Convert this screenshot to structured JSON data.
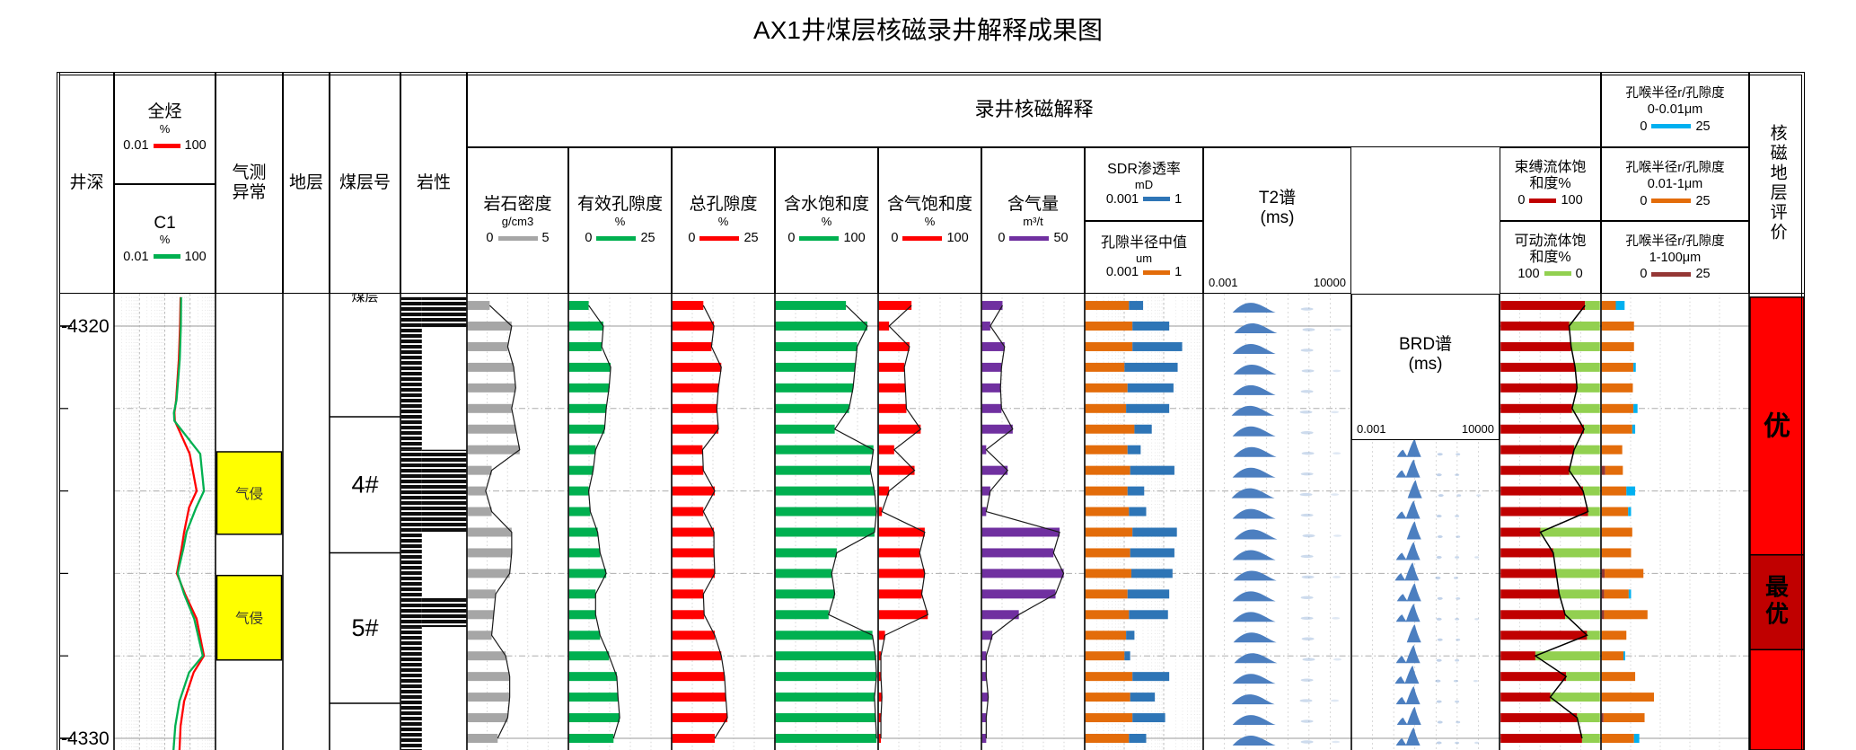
{
  "title": "AX1井煤层核磁录井解释成果图",
  "colors": {
    "red": "#FF0000",
    "green": "#00B050",
    "gray": "#A6A6A6",
    "purple": "#7030A0",
    "blue": "#2E75B6",
    "orange": "#E36C0A",
    "cyan": "#00B0F0",
    "darkred": "#C00000",
    "lightgreen": "#92D050",
    "brown": "#953735",
    "spectra": "#4C7FC0",
    "yellow": "#FFFF00",
    "grid": "#ADADAD",
    "grid_light": "#CCCCCC"
  },
  "header": {
    "band": "录井核磁解释",
    "depth": "井深",
    "gas_total": {
      "label": "全烃",
      "unit": "%",
      "min": "0.01",
      "max": "100"
    },
    "gas_c1": {
      "label": "C1",
      "unit": "%",
      "min": "0.01",
      "max": "100"
    },
    "anomaly": "气测\n异常",
    "strata": "地层",
    "seam": "煤层号",
    "lith": "岩性",
    "tracks": {
      "density": {
        "label": "岩石密度",
        "unit": "g/cm3",
        "min": "0",
        "max": "5"
      },
      "eff_por": {
        "label": "有效孔隙度",
        "unit": "%",
        "min": "0",
        "max": "25"
      },
      "tot_por": {
        "label": "总孔隙度",
        "unit": "%",
        "min": "0",
        "max": "25"
      },
      "sw": {
        "label": "含水饱和度",
        "unit": "%",
        "min": "0",
        "max": "100"
      },
      "sg": {
        "label": "含气饱和度",
        "unit": "%",
        "min": "0",
        "max": "100"
      },
      "gas_content": {
        "label": "含气量",
        "unit": "m³/t",
        "min": "0",
        "max": "50"
      },
      "sdr": {
        "label": "SDR渗透率",
        "unit": "mD",
        "min": "0.001",
        "max": "1"
      },
      "pore_radius": {
        "label": "孔隙半径中值",
        "unit": "um",
        "min": "0.001",
        "max": "1"
      },
      "t2": {
        "label": "T2谱\n(ms)",
        "min": "0.001",
        "max": "10000"
      },
      "brd": {
        "label": "BRD谱\n(ms)",
        "min": "0.001",
        "max": "10000"
      },
      "bound": {
        "label": "束缚流体饱\n和度%",
        "min": "0",
        "max": "100"
      },
      "movable": {
        "label": "可动流体饱\n和度%",
        "min": "100",
        "max": "0"
      },
      "pt1": {
        "label": "孔喉半径r/孔隙度\n0-0.01μm",
        "min": "0",
        "max": "25"
      },
      "pt2": {
        "label": "孔喉半径r/孔隙度\n0.01-1μm",
        "min": "0",
        "max": "25"
      },
      "pt3": {
        "label": "孔喉半径r/孔隙度\n1-100μm",
        "min": "0",
        "max": "25"
      },
      "eval": "核磁地层评价"
    }
  },
  "chart_data": {
    "type": "well-log",
    "title": "AX1井煤层核磁录井解释成果图",
    "depth_axis": {
      "label": "井深",
      "top": 4319.2,
      "bottom": 4330.3,
      "major_ticks": [
        4320,
        4330
      ],
      "major_labels": [
        "-4320",
        "-4330"
      ],
      "minor_ticks": [
        4322,
        4324,
        4326,
        4328
      ]
    },
    "gas_curves": {
      "scale": "log",
      "min": 0.01,
      "max": 100,
      "total_hc": [
        [
          4319.3,
          4.2
        ],
        [
          4320,
          4.0
        ],
        [
          4320.8,
          3.6
        ],
        [
          4321.8,
          2.8
        ],
        [
          4322.1,
          2.4
        ],
        [
          4322.3,
          2.5
        ],
        [
          4323.1,
          9.6
        ],
        [
          4324,
          18
        ],
        [
          4324.4,
          9.1
        ],
        [
          4325,
          5.8
        ],
        [
          4325.4,
          4.6
        ],
        [
          4326,
          3.0
        ],
        [
          4326.5,
          6.3
        ],
        [
          4327.1,
          18
        ],
        [
          4328,
          35
        ],
        [
          4328.4,
          13.8
        ],
        [
          4329.1,
          5.8
        ],
        [
          4329.7,
          4.2
        ],
        [
          4330.3,
          3.8
        ]
      ],
      "c1": [
        [
          4319.3,
          4.4
        ],
        [
          4320,
          4.3
        ],
        [
          4320.8,
          3.9
        ],
        [
          4321.8,
          2.9
        ],
        [
          4322.1,
          2.3
        ],
        [
          4322.3,
          2.4
        ],
        [
          4323.1,
          25
        ],
        [
          4324,
          35
        ],
        [
          4324.4,
          17.4
        ],
        [
          4325,
          7.2
        ],
        [
          4325.4,
          5.4
        ],
        [
          4326,
          3.2
        ],
        [
          4326.5,
          5.8
        ],
        [
          4327.1,
          14.5
        ],
        [
          4328,
          31.6
        ],
        [
          4328.4,
          9.1
        ],
        [
          4329.1,
          3.8
        ],
        [
          4329.7,
          2.6
        ],
        [
          4330.3,
          2.2
        ]
      ]
    },
    "sample_depths": [
      4319.5,
      4320,
      4320.5,
      4321,
      4321.5,
      4322,
      4322.5,
      4323,
      4323.5,
      4324,
      4324.5,
      4325,
      4325.5,
      4326,
      4326.5,
      4327,
      4327.5,
      4328,
      4328.5,
      4329,
      4329.5,
      4330
    ],
    "density_g_cm3": [
      1.1,
      2.2,
      2.0,
      2.3,
      2.4,
      2.2,
      2.4,
      2.6,
      1.2,
      0.9,
      1.2,
      2.2,
      2.2,
      2.1,
      1.4,
      1.3,
      1.2,
      1.9,
      2.1,
      2.1,
      2.0,
      1.5
    ],
    "eff_porosity_pct": [
      4.8,
      8.4,
      8.0,
      10.2,
      9.8,
      9.1,
      8.7,
      6.5,
      5.9,
      4.8,
      5.2,
      7.0,
      7.6,
      9.1,
      6.5,
      6.5,
      7.6,
      9.8,
      11.7,
      12.0,
      12.4,
      10.9
    ],
    "tot_porosity_pct": [
      7.6,
      10.2,
      9.6,
      12.0,
      11.3,
      10.9,
      11.3,
      7.4,
      7.6,
      10.4,
      7.6,
      10.2,
      10.2,
      10.4,
      7.6,
      7.8,
      10.4,
      12.0,
      12.8,
      13.1,
      13.5,
      10.4
    ],
    "water_sat_pct": [
      69,
      90,
      80,
      78,
      76,
      72,
      58,
      96,
      93,
      97,
      99,
      97,
      60,
      55,
      58,
      52,
      95,
      98,
      99,
      97,
      98,
      99
    ],
    "gas_sat_pct": [
      32,
      10,
      30,
      25,
      26,
      27,
      41,
      15,
      35,
      10,
      3,
      45,
      40,
      45,
      42,
      48,
      6,
      2,
      2,
      3,
      2,
      2
    ],
    "gas_content_m3t": [
      10,
      4,
      11,
      9.5,
      9,
      9.5,
      15,
      2,
      12.5,
      4,
      2,
      38,
      35,
      40,
      36,
      18,
      5,
      2,
      2,
      3,
      2,
      2
    ],
    "sdr_perm_mD": [
      0.03,
      0.14,
      0.3,
      0.23,
      0.18,
      0.14,
      0.05,
      0.026,
      0.19,
      0.032,
      0.036,
      0.22,
      0.19,
      0.17,
      0.14,
      0.13,
      0.018,
      0.014,
      0.14,
      0.06,
      0.11,
      0.036
    ],
    "pore_radius_um": [
      0.013,
      0.016,
      0.016,
      0.01,
      0.012,
      0.011,
      0.018,
      0.012,
      0.014,
      0.012,
      0.013,
      0.016,
      0.014,
      0.015,
      0.012,
      0.013,
      0.011,
      0.01,
      0.016,
      0.014,
      0.016,
      0.013
    ],
    "bound_fluid_pct": [
      85,
      69,
      71,
      75,
      77,
      72,
      84,
      74,
      69,
      83,
      88,
      40,
      53,
      56,
      59,
      65,
      87,
      35,
      66,
      50,
      77,
      82
    ],
    "pt_orange_001_1um": [
      2.4,
      5.5,
      5.5,
      5.4,
      5.3,
      5.4,
      5.2,
      3.5,
      3.0,
      4.2,
      4.5,
      5.2,
      5.0,
      6.6,
      4.2,
      7.4,
      4.2,
      3.7,
      5.7,
      8.9,
      7.0,
      5.5
    ],
    "pt_cyan_0_001um": [
      1.5,
      0,
      0,
      0.4,
      0,
      0.7,
      0.5,
      0,
      0,
      1.5,
      0.5,
      0,
      0,
      0,
      0.4,
      0,
      0,
      0.3,
      0,
      0,
      0,
      0.9
    ],
    "pt_brown_1_100um": [
      0,
      0,
      0,
      0,
      0,
      0,
      0,
      0,
      0.6,
      0,
      0,
      0,
      0,
      0.5,
      0.4,
      0.4,
      0,
      0,
      0,
      0,
      0.3,
      0
    ],
    "t2_peak_ms": [
      0.5,
      0.6,
      0.5,
      0.55,
      0.5,
      0.45,
      0.5,
      0.55,
      0.5,
      0.45,
      0.5,
      0.6,
      0.5,
      0.55,
      0.5,
      0.5,
      0.55,
      0.6,
      0.5,
      0.45,
      0.5,
      0.5
    ],
    "brd_peak_ms": [
      0.9,
      1.0,
      1.1,
      0.9,
      1.0,
      0.8,
      0.9,
      1.0,
      0.9,
      1.1,
      0.9,
      1.0,
      0.9,
      0.8,
      1.0,
      0.9,
      1.0,
      0.9,
      0.8,
      0.9,
      1.0,
      0.9
    ],
    "brd_double_peak": [
      false,
      false,
      true,
      true,
      true,
      true,
      true,
      true,
      true,
      false,
      true,
      false,
      true,
      true,
      true,
      true,
      false,
      true,
      true,
      true,
      true,
      true
    ],
    "lithology_blocks": [
      {
        "from": 4319.3,
        "to": 4320.05,
        "width": "full"
      },
      {
        "from": 4320.05,
        "to": 4323.0,
        "width": "left"
      },
      {
        "from": 4323.0,
        "to": 4325.0,
        "width": "full"
      },
      {
        "from": 4325.0,
        "to": 4326.6,
        "width": "left"
      },
      {
        "from": 4326.6,
        "to": 4327.3,
        "width": "full"
      },
      {
        "from": 4327.3,
        "to": 4330.3,
        "width": "left"
      }
    ],
    "seam_cells": [
      {
        "from": 4319.3,
        "to": 4322.2,
        "label": "煤层",
        "partial": true
      },
      {
        "from": 4322.2,
        "to": 4325.5,
        "label": "4#"
      },
      {
        "from": 4325.5,
        "to": 4329.15,
        "label": "5#"
      },
      {
        "from": 4329.15,
        "to": 4330.3,
        "label": ""
      }
    ],
    "gas_anomaly_blocks": [
      {
        "from": 4323.05,
        "to": 4325.05,
        "label": "气侵"
      },
      {
        "from": 4326.05,
        "to": 4328.1,
        "label": "气侵"
      }
    ],
    "evaluation_blocks": [
      {
        "from": 4319.3,
        "to": 4325.55,
        "label": "优",
        "color_key": "red"
      },
      {
        "from": 4325.55,
        "to": 4327.85,
        "label": "最优",
        "color_key": "darkred"
      },
      {
        "from": 4327.85,
        "to": 4330.3,
        "label": "",
        "color_key": "red"
      }
    ]
  }
}
